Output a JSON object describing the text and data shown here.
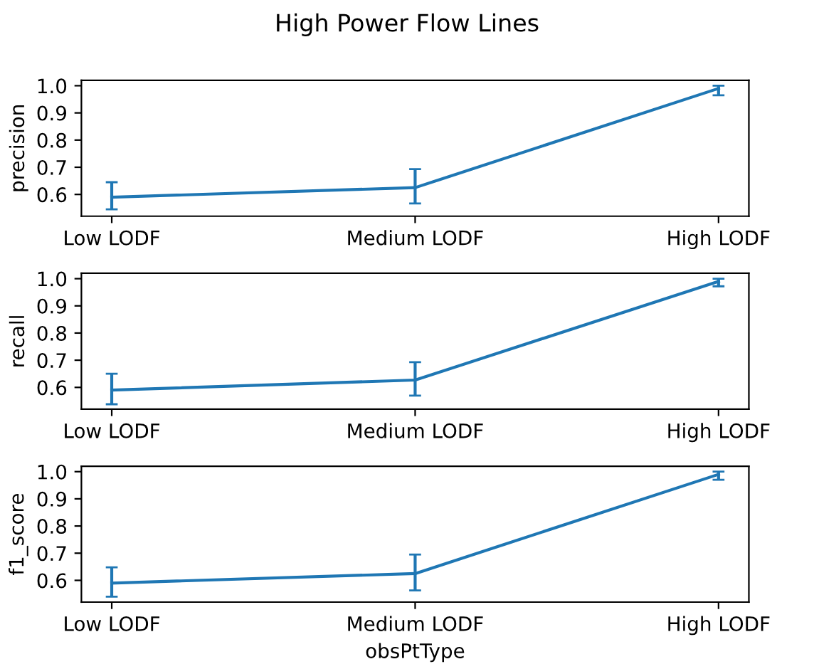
{
  "chart_data": [
    {
      "type": "line",
      "title": "High Power Flow Lines",
      "ylabel": "precision",
      "categories": [
        "Low LODF",
        "Medium LODF",
        "High LODF"
      ],
      "series": [
        {
          "color": "#1f77b4",
          "values": [
            0.59,
            0.625,
            0.99
          ],
          "errors": [
            [
              0.545,
              0.645
            ],
            [
              0.567,
              0.693
            ],
            [
              0.965,
              1.0
            ]
          ]
        }
      ],
      "ylim": [
        0.52,
        1.02
      ],
      "yticks": [
        {
          "value": 0.6,
          "label": "0.6"
        },
        {
          "value": 0.7,
          "label": "0.7"
        },
        {
          "value": 0.8,
          "label": "0.8"
        },
        {
          "value": 0.9,
          "label": "0.9"
        },
        {
          "value": 1.0,
          "label": "1.0"
        }
      ],
      "marker": "none"
    },
    {
      "type": "line",
      "ylabel": "recall",
      "categories": [
        "Low LODF",
        "Medium LODF",
        "High LODF"
      ],
      "series": [
        {
          "color": "#1f77b4",
          "values": [
            0.59,
            0.627,
            0.99
          ],
          "errors": [
            [
              0.538,
              0.65
            ],
            [
              0.57,
              0.693
            ],
            [
              0.972,
              1.0
            ]
          ]
        }
      ],
      "ylim": [
        0.52,
        1.02
      ],
      "yticks": [
        {
          "value": 0.6,
          "label": "0.6"
        },
        {
          "value": 0.7,
          "label": "0.7"
        },
        {
          "value": 0.8,
          "label": "0.8"
        },
        {
          "value": 0.9,
          "label": "0.9"
        },
        {
          "value": 1.0,
          "label": "1.0"
        }
      ],
      "marker": "none"
    },
    {
      "type": "line",
      "ylabel": "f1_score",
      "xlabel": "obsPtType",
      "categories": [
        "Low LODF",
        "Medium LODF",
        "High LODF"
      ],
      "series": [
        {
          "color": "#1f77b4",
          "values": [
            0.59,
            0.625,
            0.99
          ],
          "errors": [
            [
              0.54,
              0.648
            ],
            [
              0.563,
              0.695
            ],
            [
              0.97,
              1.0
            ]
          ]
        }
      ],
      "ylim": [
        0.52,
        1.02
      ],
      "yticks": [
        {
          "value": 0.6,
          "label": "0.6"
        },
        {
          "value": 0.7,
          "label": "0.7"
        },
        {
          "value": 0.8,
          "label": "0.8"
        },
        {
          "value": 0.9,
          "label": "0.9"
        },
        {
          "value": 1.0,
          "label": "1.0"
        }
      ],
      "marker": "none"
    }
  ]
}
